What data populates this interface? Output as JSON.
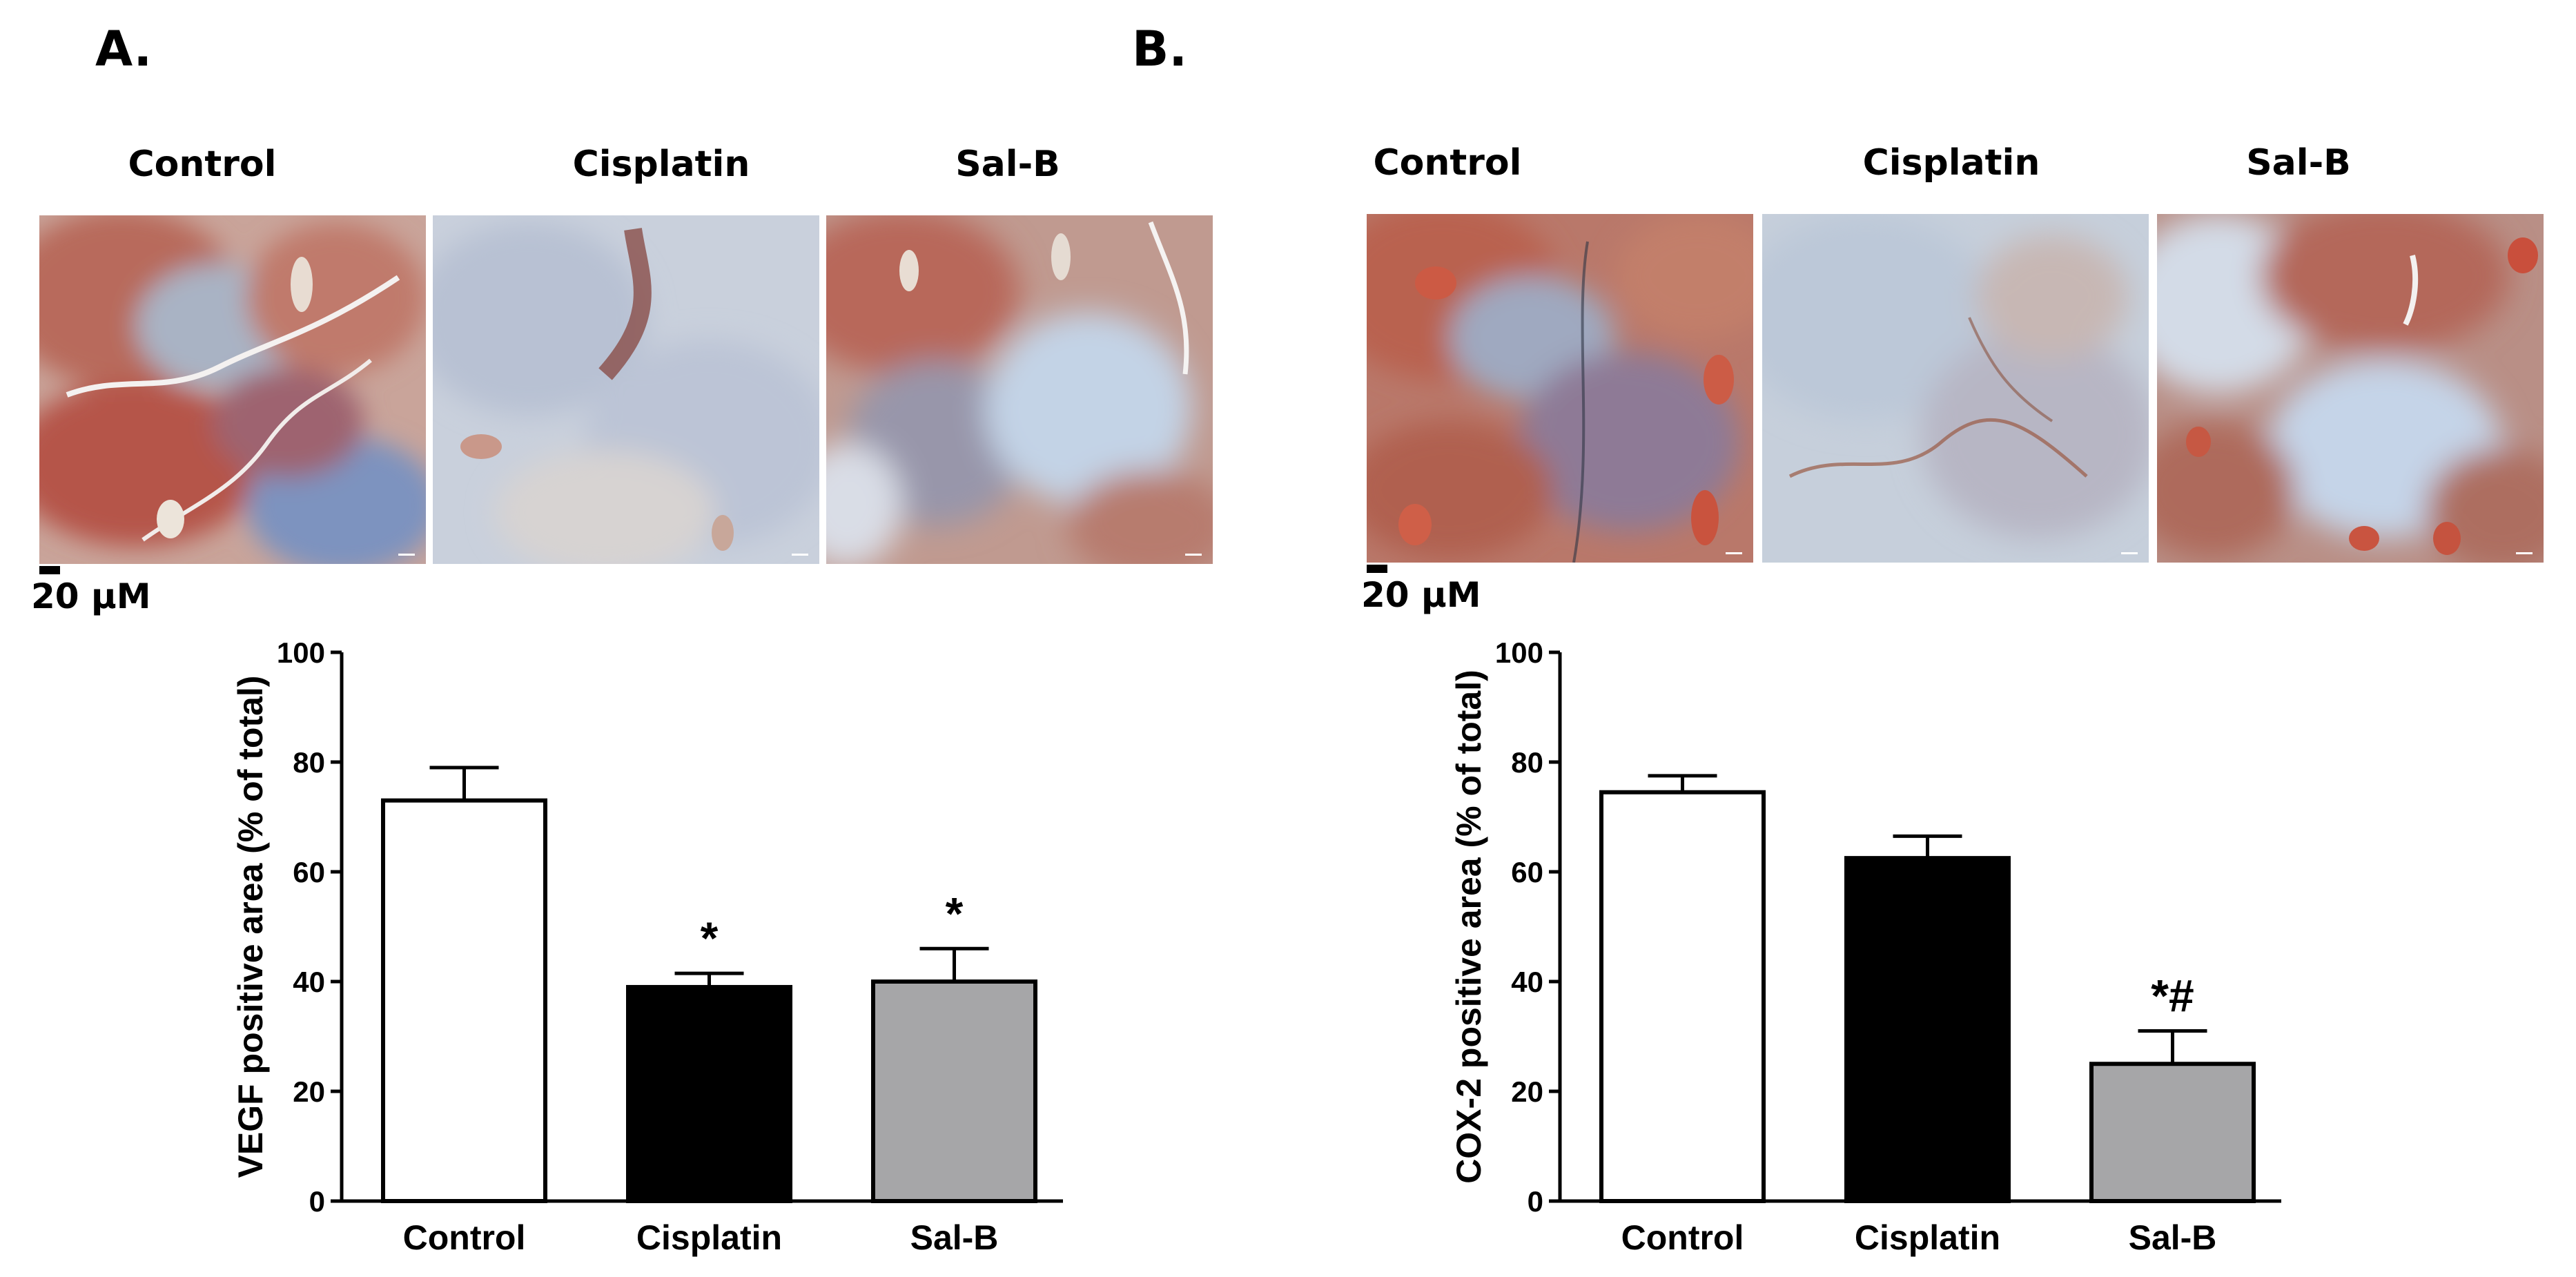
{
  "panels": [
    {
      "letter": "A.",
      "image_labels": [
        "Control",
        "Cisplatin",
        "Sal-B"
      ],
      "scale_text": "20 µM"
    },
    {
      "letter": "B.",
      "image_labels": [
        "Control",
        "Cisplatin",
        "Sal-B"
      ],
      "scale_text": "20 µM"
    }
  ],
  "colors": {
    "control_bar": "#ffffff",
    "cisplatin_bar": "#000000",
    "salb_bar": "#a6a6a8",
    "tissue_red": "#b8574a",
    "tissue_blue": "#8fa6c8"
  },
  "chart_data": [
    {
      "type": "bar",
      "categories": [
        "Control",
        "Cisplatin",
        "Sal-B"
      ],
      "values": [
        73,
        39,
        40
      ],
      "errors": [
        6,
        2.5,
        6
      ],
      "annotations": [
        "",
        "*",
        "*"
      ],
      "ylabel": "VEGF positive area (% of total)",
      "ylim": [
        0,
        100
      ],
      "yticks": [
        0,
        20,
        40,
        60,
        80,
        100
      ]
    },
    {
      "type": "bar",
      "categories": [
        "Control",
        "Cisplatin",
        "Sal-B"
      ],
      "values": [
        74.5,
        62.5,
        25
      ],
      "errors": [
        3,
        4,
        6
      ],
      "annotations": [
        "",
        "",
        "*#"
      ],
      "ylabel": "COX-2 positive area (% of total)",
      "ylim": [
        0,
        100
      ],
      "yticks": [
        0,
        20,
        40,
        60,
        80,
        100
      ]
    }
  ]
}
